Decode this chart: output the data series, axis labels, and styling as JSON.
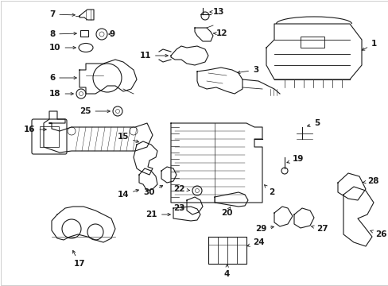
{
  "bg_color": "#ffffff",
  "line_color": "#1a1a1a",
  "figsize": [
    4.89,
    3.6
  ],
  "dpi": 100,
  "border_color": "#aaaaaa"
}
